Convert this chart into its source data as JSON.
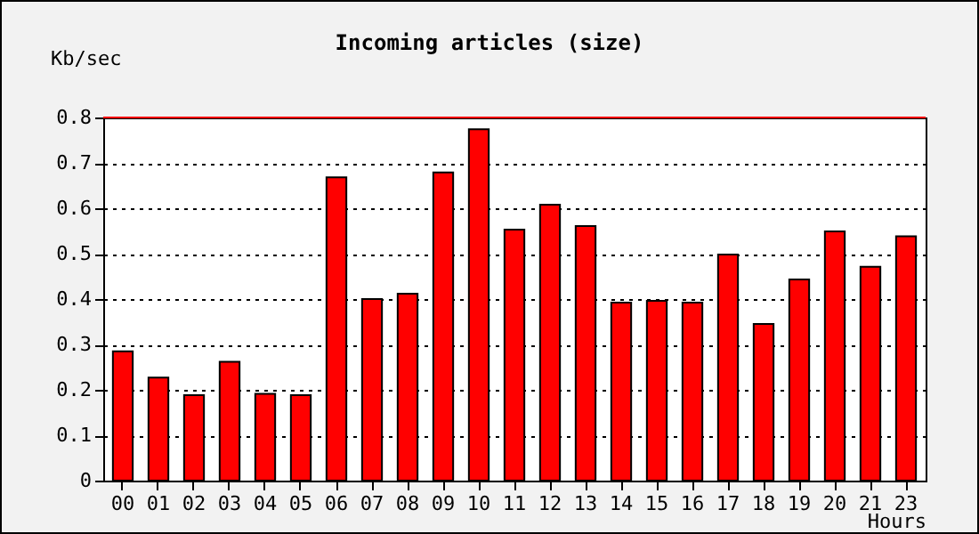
{
  "chart_data": {
    "type": "bar",
    "title": "Incoming articles (size)",
    "xlabel": "Hours",
    "ylabel": "Kb/sec",
    "categories": [
      "00",
      "01",
      "02",
      "03",
      "04",
      "05",
      "06",
      "07",
      "08",
      "09",
      "10",
      "11",
      "12",
      "13",
      "14",
      "15",
      "16",
      "17",
      "18",
      "19",
      "20",
      "21",
      "23"
    ],
    "values": [
      0.285,
      0.227,
      0.188,
      0.262,
      0.191,
      0.188,
      0.668,
      0.4,
      0.412,
      0.679,
      0.774,
      0.553,
      0.608,
      0.561,
      0.392,
      0.396,
      0.392,
      0.498,
      0.345,
      0.443,
      0.549,
      0.471,
      0.538
    ],
    "color": "#ff0000",
    "ylim": [
      0,
      0.8
    ],
    "yticks": [
      0,
      0.1,
      0.2,
      0.3,
      0.4,
      0.5,
      0.6,
      0.7,
      0.8
    ],
    "grid": "y",
    "ref_lines": [
      {
        "axis": "y",
        "value": 0.8,
        "color": "#ff0000"
      }
    ]
  }
}
